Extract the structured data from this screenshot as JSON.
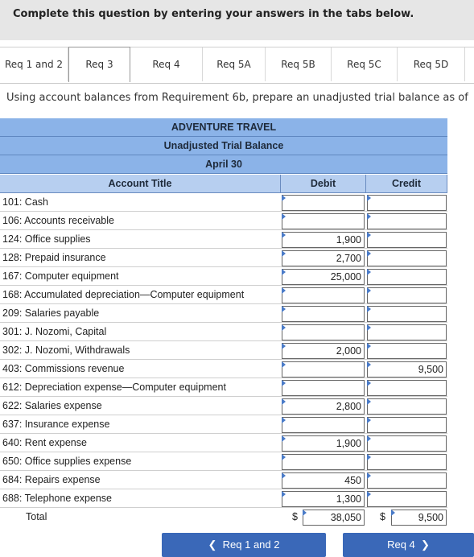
{
  "header": {
    "instruction": "Complete this question by entering your answers in the tabs below."
  },
  "tabs": [
    {
      "label": "Req 1 and 2"
    },
    {
      "label": "Req 3"
    },
    {
      "label": "Req 4"
    },
    {
      "label": "Req 5A"
    },
    {
      "label": "Req 5B"
    },
    {
      "label": "Req 5C"
    },
    {
      "label": "Req 5D"
    }
  ],
  "active_tab": "Req 3",
  "instructions": "Using account balances from Requirement 6b, prepare an unadjusted trial balance as of",
  "sheet": {
    "company": "ADVENTURE TRAVEL",
    "statement": "Unadjusted Trial Balance",
    "date": "April 30",
    "col_account": "Account Title",
    "col_debit": "Debit",
    "col_credit": "Credit"
  },
  "rows": [
    {
      "account": "101: Cash",
      "debit": "",
      "credit": ""
    },
    {
      "account": "106: Accounts receivable",
      "debit": "",
      "credit": ""
    },
    {
      "account": "124: Office supplies",
      "debit": "1,900",
      "credit": ""
    },
    {
      "account": "128: Prepaid insurance",
      "debit": "2,700",
      "credit": ""
    },
    {
      "account": "167: Computer equipment",
      "debit": "25,000",
      "credit": ""
    },
    {
      "account": "168: Accumulated depreciation—Computer equipment",
      "debit": "",
      "credit": ""
    },
    {
      "account": "209: Salaries payable",
      "debit": "",
      "credit": ""
    },
    {
      "account": "301: J. Nozomi, Capital",
      "debit": "",
      "credit": ""
    },
    {
      "account": "302: J. Nozomi, Withdrawals",
      "debit": "2,000",
      "credit": ""
    },
    {
      "account": "403: Commissions revenue",
      "debit": "",
      "credit": "9,500"
    },
    {
      "account": "612: Depreciation expense—Computer equipment",
      "debit": "",
      "credit": ""
    },
    {
      "account": "622: Salaries expense",
      "debit": "2,800",
      "credit": ""
    },
    {
      "account": "637: Insurance expense",
      "debit": "",
      "credit": ""
    },
    {
      "account": "640: Rent expense",
      "debit": "1,900",
      "credit": ""
    },
    {
      "account": "650: Office supplies expense",
      "debit": "",
      "credit": ""
    },
    {
      "account": "684: Repairs expense",
      "debit": "450",
      "credit": ""
    },
    {
      "account": "688: Telephone expense",
      "debit": "1,300",
      "credit": ""
    }
  ],
  "total": {
    "label": "Total",
    "currency": "$",
    "debit": "38,050",
    "credit": "9,500"
  },
  "nav": {
    "prev_label": "Req 1 and 2",
    "next_label": "Req 4"
  }
}
